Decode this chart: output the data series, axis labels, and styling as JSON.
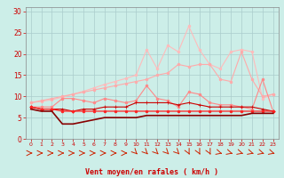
{
  "bg_color": "#cceee8",
  "grid_color": "#aacccc",
  "xlabel": "Vent moyen/en rafales ( km/h )",
  "xlabel_color": "#cc0000",
  "tick_color": "#cc0000",
  "x_values": [
    0,
    1,
    2,
    3,
    4,
    5,
    6,
    7,
    8,
    9,
    10,
    11,
    12,
    13,
    14,
    15,
    16,
    17,
    18,
    19,
    20,
    21,
    22,
    23
  ],
  "series": [
    {
      "name": "lightest_pink_trending",
      "color": "#ffbbbb",
      "marker": "o",
      "markersize": 2.0,
      "linewidth": 0.8,
      "y": [
        8.5,
        8.8,
        9.2,
        9.8,
        10.5,
        11.2,
        12.0,
        12.8,
        13.5,
        14.2,
        15.0,
        21.0,
        16.5,
        22.0,
        20.5,
        26.5,
        21.0,
        17.5,
        16.5,
        20.5,
        21.0,
        20.5,
        9.5,
        10.5
      ]
    },
    {
      "name": "light_pink_diagonal",
      "color": "#ffaaaa",
      "marker": "o",
      "markersize": 2.0,
      "linewidth": 0.8,
      "y": [
        8.5,
        9.0,
        9.5,
        10.0,
        10.5,
        11.0,
        11.5,
        12.0,
        12.5,
        13.0,
        13.5,
        14.0,
        15.0,
        15.5,
        17.5,
        17.0,
        17.5,
        17.5,
        14.0,
        13.5,
        20.5,
        14.0,
        10.0,
        10.5
      ]
    },
    {
      "name": "medium_pink_spiky",
      "color": "#ff8888",
      "marker": "o",
      "markersize": 2.0,
      "linewidth": 0.8,
      "y": [
        7.5,
        7.5,
        7.5,
        9.5,
        9.5,
        9.0,
        8.5,
        9.5,
        9.0,
        8.5,
        9.0,
        12.5,
        9.5,
        9.0,
        7.5,
        11.0,
        10.5,
        8.5,
        8.0,
        8.0,
        7.5,
        7.0,
        14.0,
        6.5
      ]
    },
    {
      "name": "red_plus_markers",
      "color": "#cc0000",
      "marker": "+",
      "markersize": 3.5,
      "linewidth": 0.8,
      "y": [
        7.5,
        7.0,
        7.0,
        7.0,
        6.5,
        7.0,
        7.0,
        7.5,
        7.5,
        7.5,
        8.5,
        8.5,
        8.5,
        8.5,
        8.0,
        8.5,
        8.0,
        7.5,
        7.5,
        7.5,
        7.5,
        7.5,
        7.0,
        6.5
      ]
    },
    {
      "name": "bright_red_flat",
      "color": "#ff2222",
      "marker": "o",
      "markersize": 2.0,
      "linewidth": 0.9,
      "y": [
        7.5,
        7.0,
        7.0,
        6.5,
        6.5,
        6.5,
        6.5,
        6.5,
        6.5,
        6.5,
        6.5,
        6.5,
        6.5,
        6.5,
        6.5,
        6.5,
        6.5,
        6.5,
        6.5,
        6.5,
        6.5,
        6.5,
        6.5,
        6.5
      ]
    },
    {
      "name": "dark_red_dip",
      "color": "#880000",
      "marker": null,
      "markersize": 0,
      "linewidth": 1.2,
      "y": [
        7.0,
        6.5,
        6.5,
        3.5,
        3.5,
        4.0,
        4.5,
        5.0,
        5.0,
        5.0,
        5.0,
        5.5,
        5.5,
        5.5,
        5.5,
        5.5,
        5.5,
        5.5,
        5.5,
        5.5,
        5.5,
        6.0,
        6.0,
        6.0
      ]
    }
  ],
  "arrow_color": "#cc2200",
  "ylim": [
    0,
    31
  ],
  "yticks": [
    0,
    5,
    10,
    15,
    20,
    25,
    30
  ],
  "xlim": [
    -0.5,
    23.5
  ],
  "xticks": [
    0,
    1,
    2,
    3,
    4,
    5,
    6,
    7,
    8,
    9,
    10,
    11,
    12,
    13,
    14,
    15,
    16,
    17,
    18,
    19,
    20,
    21,
    22,
    23
  ]
}
